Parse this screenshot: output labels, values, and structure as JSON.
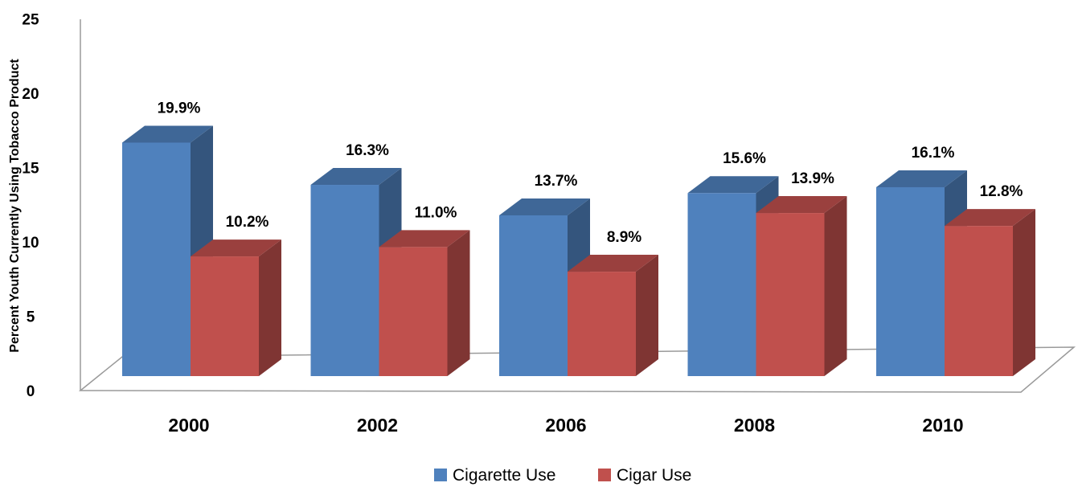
{
  "chart_data": {
    "type": "bar",
    "style": "3d-clustered-column",
    "categories": [
      "2000",
      "2002",
      "2006",
      "2008",
      "2010"
    ],
    "series": [
      {
        "name": "Cigarette Use",
        "color": "#4F81BD",
        "values": [
          19.9,
          16.3,
          13.7,
          15.6,
          16.1
        ],
        "labels": [
          "19.9%",
          "16.3%",
          "13.7%",
          "15.6%",
          "16.1%"
        ]
      },
      {
        "name": "Cigar Use",
        "color": "#C0504D",
        "values": [
          10.2,
          11.0,
          8.9,
          13.9,
          12.8
        ],
        "labels": [
          "10.2%",
          "11.0%",
          "8.9%",
          "13.9%",
          "12.8%"
        ]
      }
    ],
    "ylabel": "Percent Youth Currently Using Tobacco Product",
    "xlabel": "",
    "ylim": [
      0,
      25
    ],
    "yticks": [
      "0",
      "5",
      "10",
      "15",
      "20",
      "25"
    ],
    "grid": false,
    "legend": "bottom"
  }
}
